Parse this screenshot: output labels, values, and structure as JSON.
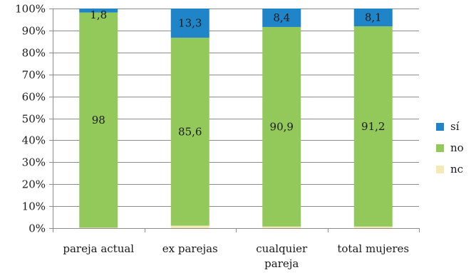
{
  "chart_data": {
    "type": "bar",
    "stacked": true,
    "normalized": true,
    "title": "",
    "xlabel": "",
    "ylabel": "",
    "ylim": [
      0,
      100
    ],
    "y_ticks": [
      "0%",
      "10%",
      "20%",
      "30%",
      "40%",
      "50%",
      "60%",
      "70%",
      "80%",
      "90%",
      "100%"
    ],
    "grid": true,
    "legend_position": "right",
    "categories": [
      [
        "pareja actual"
      ],
      [
        "ex parejas"
      ],
      [
        "cualquier",
        "pareja"
      ],
      [
        "total mujeres"
      ]
    ],
    "series": [
      {
        "name": "nc",
        "color": "#f4eab8",
        "values": [
          0.2,
          1.1,
          0.7,
          0.7
        ],
        "labels": [
          "",
          "",
          "",
          ""
        ]
      },
      {
        "name": "no",
        "color": "#92c95a",
        "values": [
          98,
          85.6,
          90.9,
          91.2
        ],
        "labels": [
          "98",
          "85,6",
          "90,9",
          "91,2"
        ]
      },
      {
        "name": "sí",
        "color": "#1f85c8",
        "values": [
          1.8,
          13.3,
          8.4,
          8.1
        ],
        "labels": [
          "1,8",
          "13,3",
          "8,4",
          "8,1"
        ]
      }
    ],
    "legend_order": [
      "sí",
      "no",
      "nc"
    ]
  }
}
